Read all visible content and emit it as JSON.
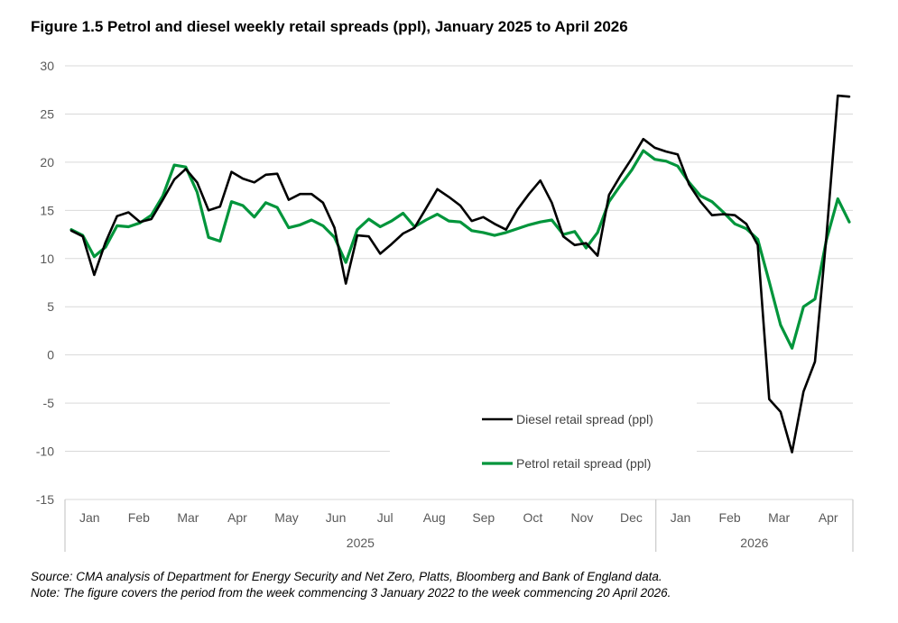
{
  "title": "Figure 1.5 Petrol and diesel weekly retail spreads (ppl), January 2025 to April 2026",
  "source": "Source: CMA analysis of Department for Energy Security and Net Zero, Platts, Bloomberg and Bank of England data.",
  "note": "Note: The figure covers the period from the week commencing 3 January 2022 to the week commencing 20 April 2026.",
  "chart_data": {
    "type": "line",
    "title": "Figure 1.5 Petrol and diesel weekly retail spreads (ppl), January 2025 to April 2026",
    "xlabel": "",
    "ylabel": "",
    "ylim": [
      -15,
      30
    ],
    "yticks": [
      -15,
      -10,
      -5,
      0,
      5,
      10,
      15,
      20,
      25,
      30
    ],
    "grid": true,
    "legend_position": "bottom-right",
    "month_labels": [
      "Jan",
      "Feb",
      "Mar",
      "Apr",
      "May",
      "Jun",
      "Jul",
      "Aug",
      "Sep",
      "Oct",
      "Nov",
      "Dec",
      "Jan",
      "Feb",
      "Mar",
      "Apr"
    ],
    "year_labels": [
      "2025",
      "2026"
    ],
    "year_month_counts": [
      12,
      4
    ],
    "series": [
      {
        "name": "Diesel retail spread (ppl)",
        "color": "#000000",
        "values": [
          12.9,
          12.3,
          8.3,
          11.7,
          14.4,
          14.8,
          13.8,
          14.1,
          16.1,
          18.2,
          19.3,
          17.9,
          15.0,
          15.4,
          19.0,
          18.3,
          17.9,
          18.7,
          18.8,
          16.1,
          16.7,
          16.7,
          15.8,
          13.2,
          7.4,
          12.4,
          12.3,
          10.5,
          11.5,
          12.6,
          13.2,
          15.2,
          17.2,
          16.4,
          15.5,
          13.9,
          14.3,
          13.6,
          13.0,
          15.1,
          16.7,
          18.1,
          15.8,
          12.3,
          11.4,
          11.6,
          10.3,
          16.6,
          18.6,
          20.4,
          22.4,
          21.5,
          21.1,
          20.8,
          17.7,
          15.9,
          14.5,
          14.6,
          14.5,
          13.6,
          11.4,
          -4.6,
          -5.9,
          -10.1,
          -3.8,
          -0.7,
          12.2,
          26.9,
          26.8
        ]
      },
      {
        "name": "Petrol retail spread (ppl)",
        "color": "#00953B",
        "values": [
          13.0,
          12.4,
          10.2,
          11.2,
          13.4,
          13.3,
          13.7,
          14.5,
          16.5,
          19.7,
          19.5,
          16.9,
          12.2,
          11.8,
          15.9,
          15.5,
          14.3,
          15.8,
          15.3,
          13.2,
          13.5,
          14.0,
          13.4,
          12.2,
          9.6,
          13.0,
          14.1,
          13.3,
          13.9,
          14.7,
          13.3,
          14.0,
          14.6,
          13.9,
          13.8,
          12.9,
          12.7,
          12.4,
          12.7,
          13.1,
          13.5,
          13.8,
          14.0,
          12.5,
          12.8,
          11.1,
          12.7,
          15.9,
          17.6,
          19.2,
          21.2,
          20.3,
          20.1,
          19.6,
          17.9,
          16.5,
          15.9,
          14.8,
          13.6,
          13.1,
          12.0,
          7.6,
          3.1,
          0.7,
          5.0,
          5.8,
          11.9,
          16.2,
          13.8
        ]
      }
    ]
  }
}
